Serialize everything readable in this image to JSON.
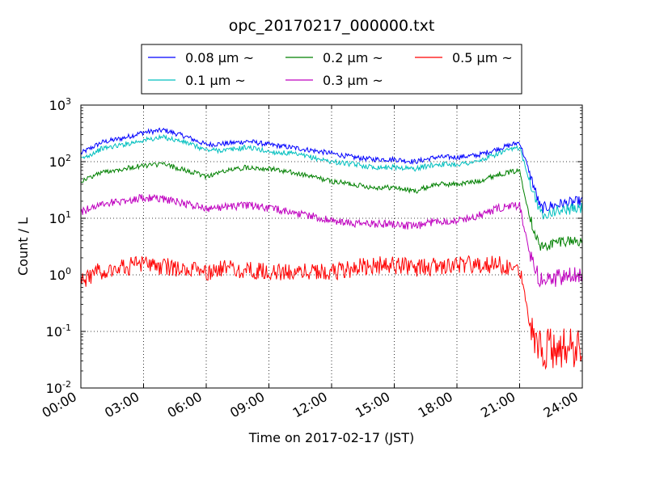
{
  "chart_data": {
    "type": "line",
    "title": "opc_20170217_000000.txt",
    "xlabel": "Time on 2017-02-17 (JST)",
    "ylabel": "Count / L",
    "yscale": "log",
    "ylim": [
      0.01,
      1000
    ],
    "xlim": [
      "00:00",
      "24:00"
    ],
    "grid": true,
    "legend_position": "top-center",
    "x_ticks": [
      "00:00",
      "03:00",
      "06:00",
      "09:00",
      "12:00",
      "15:00",
      "18:00",
      "21:00",
      "24:00"
    ],
    "y_ticks": [
      {
        "value": 0.01,
        "base": "10",
        "exp": "-2"
      },
      {
        "value": 0.1,
        "base": "10",
        "exp": "-1"
      },
      {
        "value": 1,
        "base": "10",
        "exp": "0"
      },
      {
        "value": 10,
        "base": "10",
        "exp": "1"
      },
      {
        "value": 100,
        "base": "10",
        "exp": "2"
      },
      {
        "value": 1000,
        "base": "10",
        "exp": "3"
      }
    ],
    "x": [
      "00:00",
      "01:00",
      "02:00",
      "03:00",
      "04:00",
      "05:00",
      "06:00",
      "07:00",
      "08:00",
      "09:00",
      "10:00",
      "11:00",
      "12:00",
      "13:00",
      "14:00",
      "15:00",
      "16:00",
      "17:00",
      "18:00",
      "19:00",
      "20:00",
      "21:00",
      "21:30",
      "22:00",
      "23:00",
      "24:00"
    ],
    "series": [
      {
        "name": "0.08 μm ~",
        "color": "#0000ff",
        "values": [
          140,
          220,
          260,
          330,
          360,
          280,
          200,
          210,
          230,
          200,
          180,
          160,
          140,
          120,
          110,
          110,
          100,
          120,
          120,
          130,
          170,
          220,
          60,
          15,
          18,
          20
        ]
      },
      {
        "name": "0.1 μm ~",
        "color": "#00bfbf",
        "values": [
          110,
          170,
          200,
          240,
          270,
          220,
          160,
          160,
          180,
          150,
          140,
          120,
          100,
          90,
          80,
          80,
          75,
          90,
          90,
          100,
          140,
          180,
          45,
          12,
          14,
          15
        ]
      },
      {
        "name": "0.2 μm ~",
        "color": "#008000",
        "values": [
          45,
          65,
          75,
          85,
          90,
          70,
          55,
          70,
          80,
          75,
          65,
          55,
          45,
          40,
          35,
          35,
          30,
          40,
          40,
          45,
          60,
          70,
          10,
          3,
          4,
          4
        ]
      },
      {
        "name": "0.3 μm ~",
        "color": "#bf00bf",
        "values": [
          13,
          18,
          20,
          23,
          22,
          18,
          15,
          16,
          17,
          15,
          13,
          11,
          9,
          8,
          8,
          8,
          7,
          9,
          9,
          11,
          15,
          17,
          2,
          0.8,
          0.9,
          1
        ]
      },
      {
        "name": "0.5 μm ~",
        "color": "#ff0000",
        "values": [
          0.8,
          1.2,
          1.4,
          1.5,
          1.4,
          1.2,
          1.1,
          1.3,
          1.2,
          1.1,
          1.1,
          1.2,
          1.1,
          1.3,
          1.5,
          1.5,
          1.3,
          1.4,
          1.5,
          1.5,
          1.5,
          1.4,
          0.15,
          0.05,
          0.05,
          0.05
        ]
      }
    ]
  }
}
